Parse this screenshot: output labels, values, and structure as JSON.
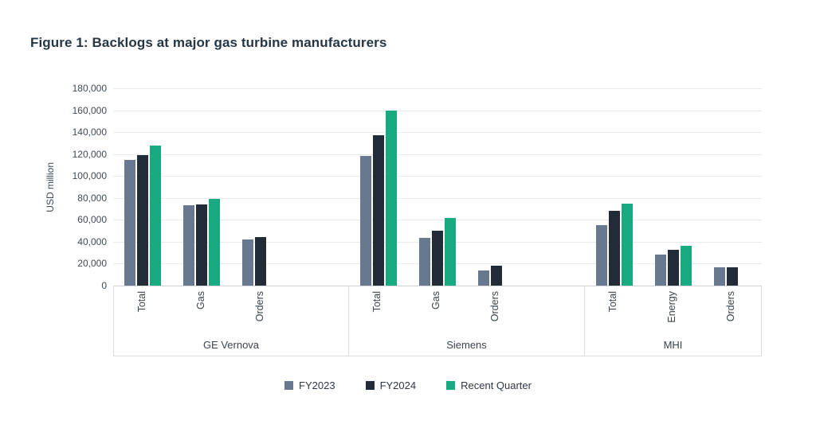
{
  "figure": {
    "title": "Figure 1: Backlogs at major gas turbine manufacturers"
  },
  "colors": {
    "fy2023": "#68798f",
    "fy2024": "#212c38",
    "recent_quarter": "#1aaa82",
    "title_text": "#253645",
    "axis_text": "#3f4a55",
    "gridline": "#e8eaec",
    "box_border": "#d9dcdf"
  },
  "chart_data": {
    "type": "bar",
    "title": "Figure 1: Backlogs at major gas turbine manufacturers",
    "xlabel": "",
    "ylabel": "USD million",
    "ylim": [
      0,
      180000
    ],
    "ytick_step": 20000,
    "ytick_labels": [
      "180,000",
      "160,000",
      "140,000",
      "120,000",
      "100,000",
      "80,000",
      "60,000",
      "40,000",
      "20,000",
      "0"
    ],
    "grid": true,
    "legend_position": "bottom",
    "legend": [
      "FY2023",
      "FY2024",
      "Recent Quarter"
    ],
    "groups": [
      {
        "label": "GE Vernova",
        "categories": [
          "Total",
          "Gas",
          "Orders"
        ],
        "series": [
          {
            "name": "FY2023",
            "values": [
              115000,
              73000,
              42000
            ]
          },
          {
            "name": "FY2024",
            "values": [
              119000,
              74000,
              44000
            ]
          },
          {
            "name": "Recent Quarter",
            "values": [
              128000,
              79000,
              null
            ]
          }
        ]
      },
      {
        "label": "Siemens",
        "categories": [
          "Total",
          "Gas",
          "Orders"
        ],
        "series": [
          {
            "name": "FY2023",
            "values": [
              118000,
              43500,
              13500
            ]
          },
          {
            "name": "FY2024",
            "values": [
              137000,
              50000,
              18000
            ]
          },
          {
            "name": "Recent Quarter",
            "values": [
              160000,
              62000,
              null
            ]
          }
        ]
      },
      {
        "label": "MHI",
        "categories": [
          "Total",
          "Energy",
          "Orders"
        ],
        "series": [
          {
            "name": "FY2023",
            "values": [
              55000,
              28000,
              16500
            ]
          },
          {
            "name": "FY2024",
            "values": [
              68000,
              32500,
              17000
            ]
          },
          {
            "name": "Recent Quarter",
            "values": [
              74500,
              36000,
              null
            ]
          }
        ]
      }
    ]
  }
}
